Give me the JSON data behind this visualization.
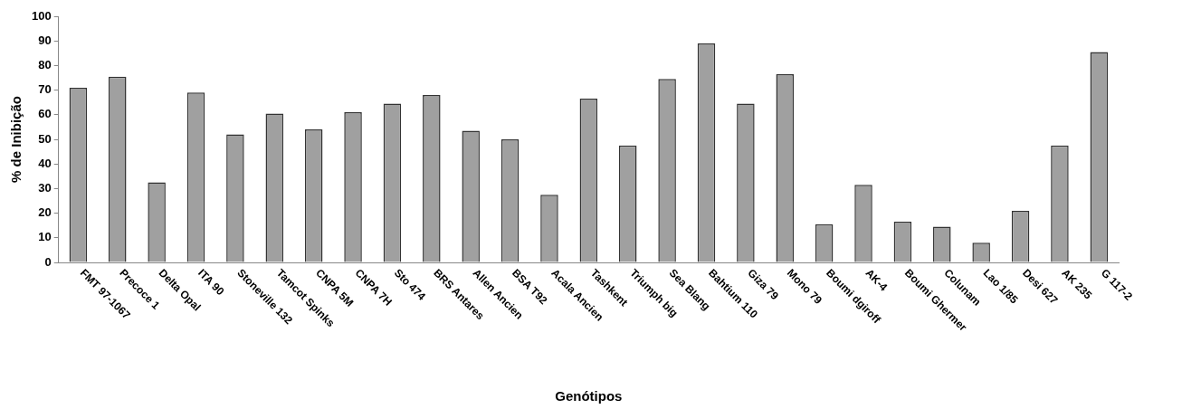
{
  "chart_data": {
    "type": "bar",
    "xlabel": "Genótipos",
    "ylabel": "% de Inibição",
    "categories": [
      "FMT 97-1067",
      "Precoce 1",
      "Delta Opal",
      "ITA 90",
      "Stoneville 132",
      "Tamcot Spinks",
      "CNPA 5M",
      "CNPA 7H",
      "Sto 474",
      "BRS Antares",
      "Allen Ancien",
      "BSA T92",
      "Acala Ancien",
      "Tashkent",
      "Triumph big",
      "Sea Blang",
      "Bahtium 110",
      "Giza 79",
      "Mono 79",
      "Boumi dgiroff",
      "AK-4",
      "Boumi Ghermer",
      "Colunam",
      "Lao 1/85",
      "Desi 627",
      "AK 235",
      "G 117-2"
    ],
    "values": [
      71,
      75.5,
      32.5,
      69,
      52,
      60.5,
      54,
      61,
      64.5,
      68,
      53.5,
      50,
      27.5,
      66.5,
      47.5,
      74.5,
      89,
      64.5,
      76.5,
      15.5,
      31.5,
      16.5,
      14.5,
      8,
      21,
      47.5,
      85.5
    ],
    "color": "#a0a0a0",
    "ylim": [
      0,
      100
    ],
    "yticks": [
      0,
      10,
      20,
      30,
      40,
      50,
      60,
      70,
      80,
      90,
      100
    ],
    "grid": false,
    "legend": false
  }
}
